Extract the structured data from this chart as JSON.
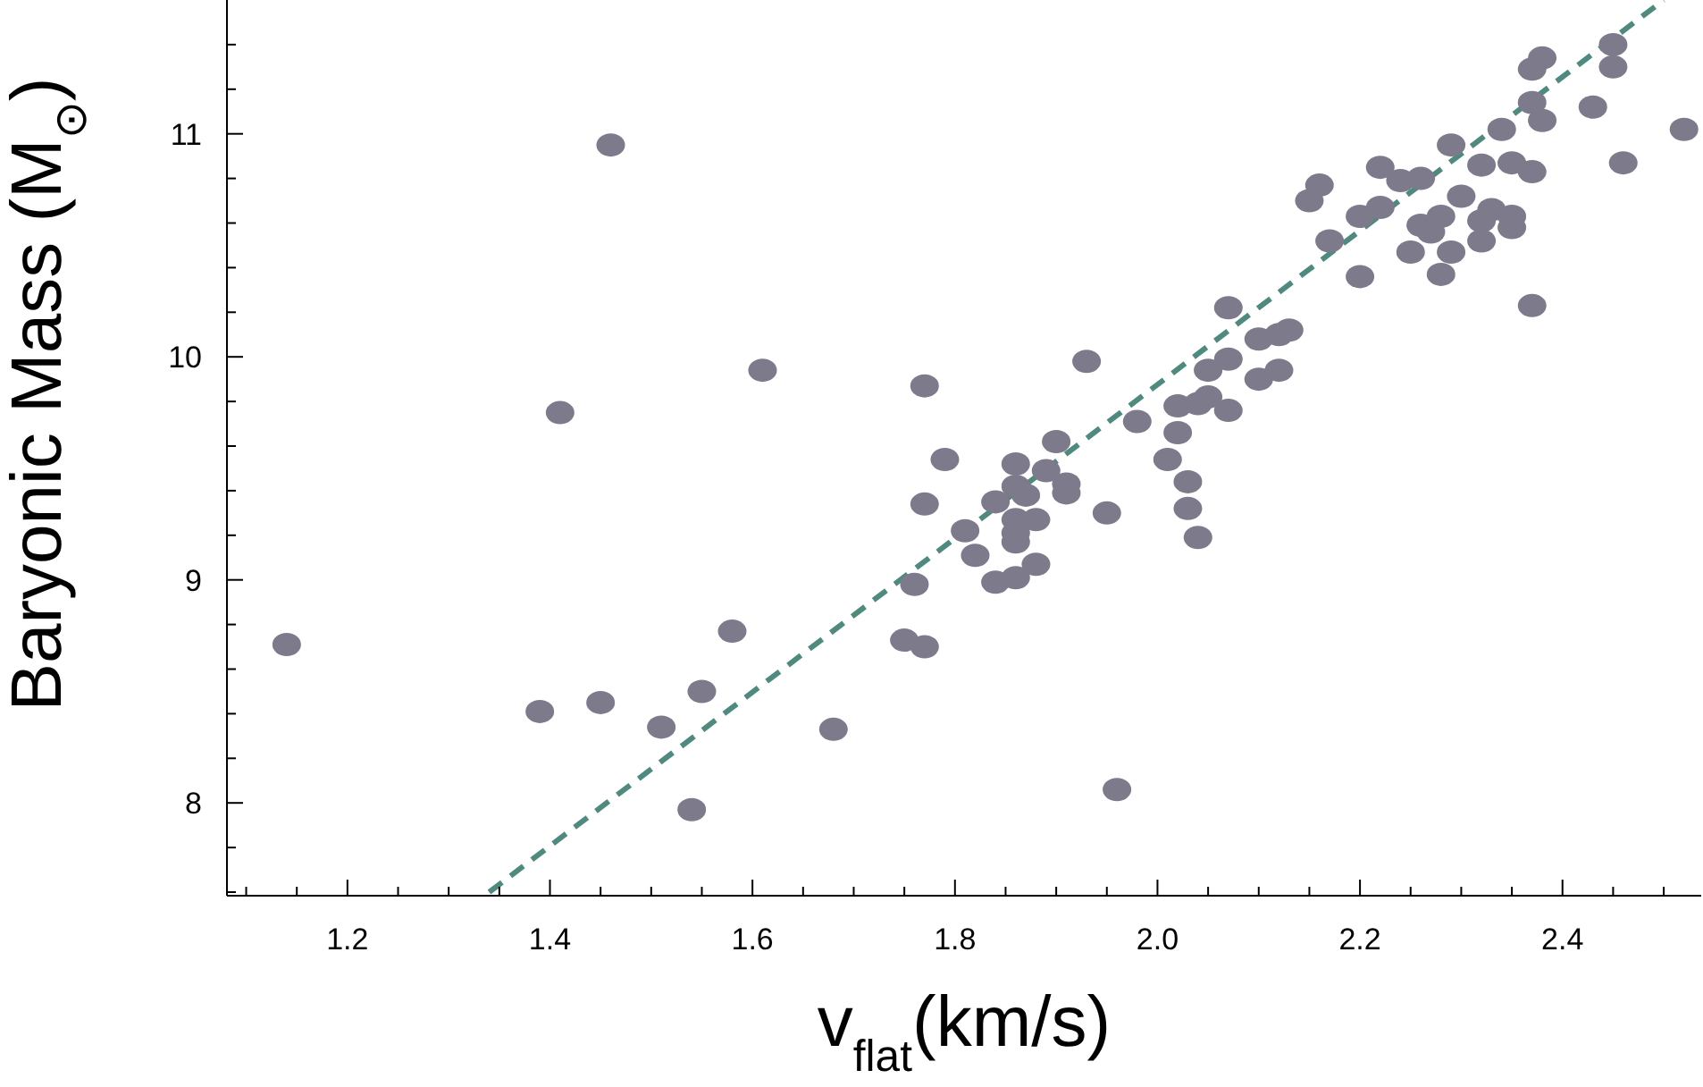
{
  "chart_data": {
    "type": "scatter",
    "xlabel": "v$_{flat}$(km/s)",
    "ylabel": "Baryonic Mass (M$_{⊙}$)",
    "xlim": [
      1.081,
      2.537
    ],
    "ylim": [
      7.584,
      11.6
    ],
    "xticks": [
      {
        "value": 1.1,
        "label": null
      },
      {
        "value": 1.15,
        "label": null
      },
      {
        "value": 1.2,
        "label": "1.2"
      },
      {
        "value": 1.25,
        "label": null
      },
      {
        "value": 1.3,
        "label": null
      },
      {
        "value": 1.35,
        "label": null
      },
      {
        "value": 1.4,
        "label": "1.4"
      },
      {
        "value": 1.45,
        "label": null
      },
      {
        "value": 1.5,
        "label": null
      },
      {
        "value": 1.55,
        "label": null
      },
      {
        "value": 1.6,
        "label": "1.6"
      },
      {
        "value": 1.65,
        "label": null
      },
      {
        "value": 1.7,
        "label": null
      },
      {
        "value": 1.75,
        "label": null
      },
      {
        "value": 1.8,
        "label": "1.8"
      },
      {
        "value": 1.85,
        "label": null
      },
      {
        "value": 1.9,
        "label": null
      },
      {
        "value": 1.95,
        "label": null
      },
      {
        "value": 2.0,
        "label": "2.0"
      },
      {
        "value": 2.05,
        "label": null
      },
      {
        "value": 2.1,
        "label": null
      },
      {
        "value": 2.15,
        "label": null
      },
      {
        "value": 2.2,
        "label": "2.2"
      },
      {
        "value": 2.25,
        "label": null
      },
      {
        "value": 2.3,
        "label": null
      },
      {
        "value": 2.35,
        "label": null
      },
      {
        "value": 2.4,
        "label": "2.4"
      },
      {
        "value": 2.45,
        "label": null
      },
      {
        "value": 2.5,
        "label": null
      }
    ],
    "yticks": [
      {
        "value": 7.6,
        "label": null
      },
      {
        "value": 7.8,
        "label": null
      },
      {
        "value": 8,
        "label": "8"
      },
      {
        "value": 8.2,
        "label": null
      },
      {
        "value": 8.4,
        "label": null
      },
      {
        "value": 8.6,
        "label": null
      },
      {
        "value": 8.8,
        "label": null
      },
      {
        "value": 9,
        "label": "9"
      },
      {
        "value": 9.2,
        "label": null
      },
      {
        "value": 9.4,
        "label": null
      },
      {
        "value": 9.6,
        "label": null
      },
      {
        "value": 9.8,
        "label": null
      },
      {
        "value": 10,
        "label": "10"
      },
      {
        "value": 10.2,
        "label": null
      },
      {
        "value": 10.4,
        "label": null
      },
      {
        "value": 10.6,
        "label": null
      },
      {
        "value": 10.8,
        "label": null
      },
      {
        "value": 11,
        "label": "11"
      },
      {
        "value": 11.2,
        "label": null
      },
      {
        "value": 11.4,
        "label": null
      }
    ],
    "grid": false,
    "legend": false,
    "marker": "circle",
    "series": [
      {
        "color": "#7d7a8c",
        "x": [
          1.14,
          1.46,
          1.41,
          1.61,
          1.77,
          1.79,
          1.77,
          1.76,
          1.75,
          1.77,
          1.58,
          1.55,
          1.45,
          1.39,
          1.51,
          1.68,
          1.54,
          1.96,
          1.98,
          2.02,
          2.01,
          2.03,
          2.03,
          2.04,
          1.95,
          1.9,
          1.86,
          1.89,
          1.91,
          1.91,
          1.84,
          1.86,
          1.87,
          1.86,
          1.88,
          1.86,
          1.86,
          1.81,
          1.82,
          1.88,
          1.84,
          1.86,
          2.07,
          2.16,
          2.15,
          2.17,
          2.2,
          2.22,
          2.22,
          2.24,
          2.26,
          2.2,
          2.25,
          2.26,
          2.28,
          2.27,
          2.3,
          2.29,
          2.29,
          2.28,
          2.32,
          2.33,
          2.32,
          2.32,
          2.35,
          2.35,
          2.34,
          2.35,
          2.37,
          2.37,
          2.38,
          2.37,
          2.37,
          2.38,
          2.45,
          2.45,
          2.43,
          2.46,
          2.52,
          1.93,
          2.07,
          2.05,
          2.1,
          2.12,
          2.13,
          2.1,
          2.12,
          2.02,
          2.04,
          2.05,
          2.07
        ],
        "values": [
          8.71,
          10.95,
          9.75,
          9.94,
          9.87,
          9.54,
          9.34,
          8.98,
          8.73,
          8.7,
          8.77,
          8.5,
          8.45,
          8.41,
          8.34,
          8.33,
          7.97,
          8.06,
          9.71,
          9.66,
          9.54,
          9.44,
          9.32,
          9.19,
          9.3,
          9.62,
          9.52,
          9.49,
          9.43,
          9.39,
          9.35,
          9.42,
          9.38,
          9.27,
          9.27,
          9.21,
          9.17,
          9.22,
          9.11,
          9.07,
          8.99,
          9.01,
          10.22,
          10.77,
          10.7,
          10.52,
          10.63,
          10.85,
          10.67,
          10.79,
          10.8,
          10.36,
          10.47,
          10.59,
          10.63,
          10.56,
          10.72,
          10.95,
          10.47,
          10.37,
          10.86,
          10.66,
          10.61,
          10.52,
          10.63,
          10.58,
          11.02,
          10.87,
          10.83,
          10.23,
          11.34,
          11.29,
          11.14,
          11.06,
          11.4,
          11.3,
          11.12,
          10.87,
          11.02,
          9.98,
          9.99,
          9.94,
          10.08,
          10.1,
          10.12,
          9.9,
          9.94,
          9.78,
          9.79,
          9.82,
          9.76
        ]
      },
      {
        "type": "line",
        "color": "#4f8a7e",
        "line_style": "dashed",
        "marker": "none",
        "x": [
          1.34,
          2.5
        ],
        "values": [
          7.6,
          11.6
        ]
      }
    ]
  }
}
